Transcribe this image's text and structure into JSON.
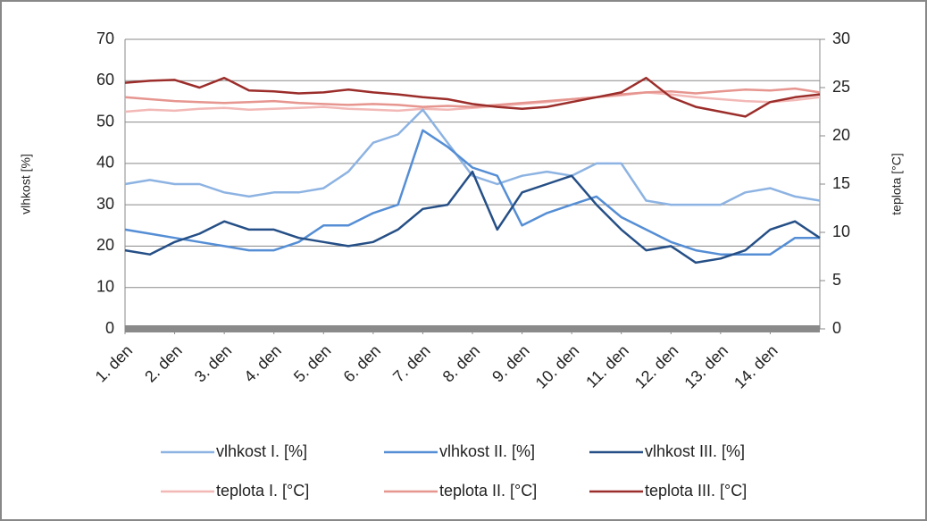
{
  "chart_data": {
    "type": "line",
    "y_label": "vlhkost [%]",
    "y2_label": "teplota [°C]",
    "xlim": [
      0,
      14
    ],
    "xticks": [
      {
        "value": 0,
        "label": "1. den"
      },
      {
        "value": 1,
        "label": "2. den"
      },
      {
        "value": 2,
        "label": "3. den"
      },
      {
        "value": 3,
        "label": "4. den"
      },
      {
        "value": 4,
        "label": "5. den"
      },
      {
        "value": 5,
        "label": "6. den"
      },
      {
        "value": 6,
        "label": "7. den"
      },
      {
        "value": 7,
        "label": "8. den"
      },
      {
        "value": 8,
        "label": "9. den"
      },
      {
        "value": 9,
        "label": "10. den"
      },
      {
        "value": 10,
        "label": "11. den"
      },
      {
        "value": 11,
        "label": "12. den"
      },
      {
        "value": 12,
        "label": "13. den"
      },
      {
        "value": 13,
        "label": "14. den"
      }
    ],
    "ylim": [
      0,
      70
    ],
    "yticks": [
      0,
      10,
      20,
      30,
      40,
      50,
      60,
      70
    ],
    "y2lim": [
      0,
      30
    ],
    "y2ticks": [
      0,
      5,
      10,
      15,
      20,
      25,
      30
    ],
    "grid": true,
    "legend": "bottom",
    "x": [
      0,
      0.5,
      1,
      1.5,
      2,
      2.5,
      3,
      3.5,
      4,
      4.5,
      5,
      5.5,
      6,
      6.5,
      7,
      7.5,
      8,
      8.5,
      9,
      9.5,
      10,
      10.5,
      11,
      11.5,
      12,
      12.5,
      13,
      13.5,
      14
    ],
    "series": [
      {
        "name": "vlhkost I. [%]",
        "color": "#8db3e2",
        "values": [
          35,
          36,
          35,
          35,
          33,
          32,
          33,
          33,
          34,
          38,
          45,
          47,
          53,
          45,
          37,
          35,
          37,
          38,
          37,
          40,
          40,
          31,
          30,
          30,
          30,
          33,
          34,
          32,
          31
        ]
      },
      {
        "name": "vlhkost II. [%]",
        "color": "#558ed5",
        "values": [
          24,
          23,
          22,
          21,
          20,
          19,
          19,
          21,
          25,
          25,
          28,
          30,
          48,
          44,
          39,
          37,
          25,
          28,
          30,
          32,
          27,
          24,
          21,
          19,
          18,
          18,
          18,
          22,
          22
        ]
      },
      {
        "name": "vlhkost III. [%]",
        "color": "#254f86",
        "values": [
          19,
          18,
          21,
          23,
          26,
          24,
          24,
          22,
          21,
          20,
          21,
          24,
          29,
          30,
          38,
          24,
          33,
          35,
          37,
          30,
          24,
          19,
          20,
          16,
          17,
          19,
          24,
          26,
          22
        ]
      },
      {
        "name": "teplota I. [°C]",
        "color": "#f2b8b6",
        "axis": "y2",
        "values": [
          22.5,
          22.7,
          22.6,
          22.8,
          22.9,
          22.7,
          22.8,
          22.9,
          23.0,
          22.8,
          22.7,
          22.6,
          22.8,
          22.7,
          22.9,
          23.1,
          23.3,
          23.5,
          23.8,
          24.0,
          24.2,
          24.5,
          24.3,
          24.0,
          23.8,
          23.6,
          23.5,
          23.7,
          24.0
        ]
      },
      {
        "name": "teplota II. [°C]",
        "color": "#e6958f",
        "axis": "y2",
        "values": [
          24.0,
          23.8,
          23.6,
          23.5,
          23.4,
          23.5,
          23.6,
          23.4,
          23.3,
          23.2,
          23.3,
          23.2,
          23.0,
          23.1,
          23.0,
          23.2,
          23.4,
          23.6,
          23.8,
          24.0,
          24.3,
          24.5,
          24.6,
          24.4,
          24.6,
          24.8,
          24.7,
          24.9,
          24.5
        ]
      },
      {
        "name": "teplota III. [°C]",
        "color": "#9b2d2a",
        "axis": "y2",
        "values": [
          25.5,
          25.7,
          25.8,
          25.0,
          26.0,
          24.7,
          24.6,
          24.4,
          24.5,
          24.8,
          24.5,
          24.3,
          24.0,
          23.8,
          23.3,
          23.0,
          22.8,
          23.0,
          23.5,
          24.0,
          24.5,
          26.0,
          24.0,
          23.0,
          22.5,
          22.0,
          23.5,
          24.0,
          24.3
        ]
      }
    ]
  }
}
